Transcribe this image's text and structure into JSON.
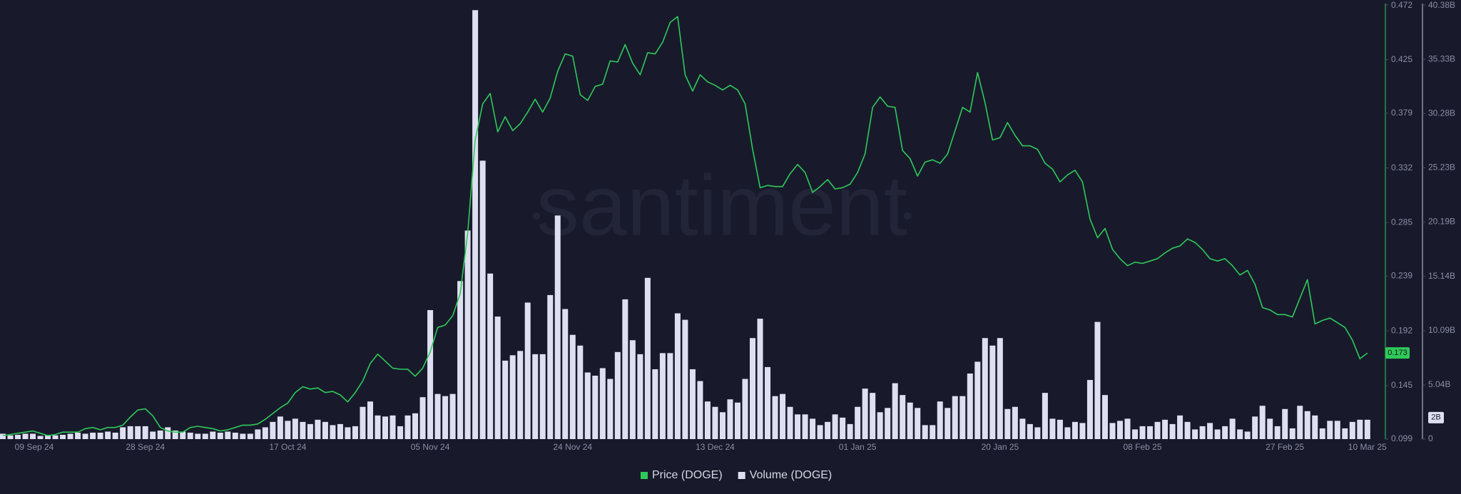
{
  "chart_data": {
    "type": "bar-line",
    "watermark": "santiment",
    "categories": [
      "09 Sep 24",
      null,
      null,
      null,
      null,
      null,
      null,
      null,
      null,
      null,
      null,
      null,
      null,
      null,
      null,
      null,
      null,
      null,
      null,
      "28 Sep 24",
      null,
      null,
      null,
      null,
      null,
      null,
      null,
      null,
      null,
      null,
      null,
      null,
      null,
      null,
      null,
      null,
      null,
      null,
      "17 Oct 24",
      null,
      null,
      null,
      null,
      null,
      null,
      null,
      null,
      null,
      null,
      null,
      null,
      null,
      null,
      null,
      null,
      null,
      null,
      "05 Nov 24",
      null,
      null,
      null,
      null,
      null,
      null,
      null,
      null,
      null,
      null,
      null,
      null,
      null,
      null,
      null,
      null,
      null,
      null,
      "24 Nov 24",
      null,
      null,
      null,
      null,
      null,
      null,
      null,
      null,
      null,
      null,
      null,
      null,
      null,
      null,
      null,
      null,
      null,
      null,
      "13 Dec 24",
      null,
      null,
      null,
      null,
      null,
      null,
      null,
      null,
      null,
      null,
      null,
      null,
      null,
      null,
      null,
      null,
      null,
      null,
      "01 Jan 25",
      null,
      null,
      null,
      null,
      null,
      null,
      null,
      null,
      null,
      null,
      null,
      null,
      null,
      null,
      null,
      null,
      null,
      null,
      "20 Jan 25",
      null,
      null,
      null,
      null,
      null,
      null,
      null,
      null,
      null,
      null,
      null,
      null,
      null,
      null,
      null,
      null,
      null,
      null,
      "08 Feb 25",
      null,
      null,
      null,
      null,
      null,
      null,
      null,
      null,
      null,
      null,
      null,
      null,
      null,
      null,
      null,
      null,
      null,
      null,
      "27 Feb 25",
      null,
      null,
      null,
      null,
      null,
      null,
      null,
      null,
      null,
      null,
      "10 Mar 25"
    ],
    "series": [
      {
        "name": "Price (DOGE)",
        "type": "line",
        "axis": "y",
        "color": "#2fc95a",
        "values": [
          0.102,
          0.103,
          0.104,
          0.105,
          0.106,
          0.104,
          0.102,
          0.103,
          0.105,
          0.105,
          0.105,
          0.108,
          0.109,
          0.107,
          0.109,
          0.109,
          0.111,
          0.118,
          0.124,
          0.125,
          0.119,
          0.109,
          0.106,
          0.105,
          0.105,
          0.109,
          0.11,
          0.109,
          0.108,
          0.106,
          0.107,
          0.109,
          0.111,
          0.111,
          0.112,
          0.116,
          0.121,
          0.126,
          0.13,
          0.139,
          0.144,
          0.142,
          0.143,
          0.139,
          0.14,
          0.137,
          0.131,
          0.139,
          0.149,
          0.164,
          0.172,
          0.166,
          0.16,
          0.159,
          0.159,
          0.153,
          0.16,
          0.174,
          0.195,
          0.197,
          0.205,
          0.224,
          0.276,
          0.356,
          0.387,
          0.396,
          0.363,
          0.376,
          0.364,
          0.37,
          0.38,
          0.391,
          0.38,
          0.392,
          0.415,
          0.43,
          0.428,
          0.395,
          0.39,
          0.402,
          0.404,
          0.424,
          0.423,
          0.438,
          0.422,
          0.412,
          0.431,
          0.43,
          0.44,
          0.457,
          0.462,
          0.412,
          0.398,
          0.412,
          0.406,
          0.403,
          0.399,
          0.403,
          0.399,
          0.387,
          0.348,
          0.315,
          0.317,
          0.316,
          0.316,
          0.327,
          0.335,
          0.328,
          0.311,
          0.316,
          0.322,
          0.314,
          0.315,
          0.318,
          0.328,
          0.344,
          0.384,
          0.393,
          0.385,
          0.384,
          0.347,
          0.34,
          0.325,
          0.337,
          0.339,
          0.336,
          0.344,
          0.364,
          0.384,
          0.38,
          0.414,
          0.388,
          0.356,
          0.358,
          0.371,
          0.36,
          0.351,
          0.351,
          0.348,
          0.336,
          0.331,
          0.32,
          0.326,
          0.33,
          0.32,
          0.288,
          0.272,
          0.28,
          0.262,
          0.254,
          0.248,
          0.251,
          0.25,
          0.252,
          0.254,
          0.259,
          0.263,
          0.265,
          0.271,
          0.268,
          0.262,
          0.254,
          0.252,
          0.254,
          0.248,
          0.24,
          0.244,
          0.232,
          0.212,
          0.21,
          0.206,
          0.206,
          0.204,
          0.22,
          0.236,
          0.198,
          0.201,
          0.203,
          0.199,
          0.195,
          0.184,
          0.168,
          0.173
        ]
      },
      {
        "name": "Volume (DOGE)",
        "type": "bar",
        "axis": "y2",
        "color": "#dedff0",
        "values": [
          0.5,
          0.35,
          0.4,
          0.5,
          0.5,
          0.3,
          0.4,
          0.35,
          0.4,
          0.5,
          0.6,
          0.5,
          0.6,
          0.6,
          0.7,
          0.6,
          1.1,
          1.2,
          1.2,
          1.2,
          0.7,
          0.8,
          1.1,
          0.8,
          0.7,
          0.6,
          0.5,
          0.5,
          0.7,
          0.6,
          0.7,
          0.6,
          0.5,
          0.5,
          0.9,
          1.1,
          1.6,
          2.1,
          1.7,
          1.9,
          1.6,
          1.4,
          1.8,
          1.6,
          1.3,
          1.4,
          1.1,
          1.2,
          3.0,
          3.5,
          2.2,
          2.1,
          2.2,
          1.2,
          2.2,
          2.4,
          3.9,
          12.0,
          4.2,
          4.0,
          4.2,
          14.7,
          19.4,
          39.9,
          25.9,
          15.4,
          11.4,
          7.3,
          7.8,
          8.2,
          12.7,
          7.9,
          7.9,
          13.4,
          20.8,
          12.1,
          9.7,
          8.7,
          6.2,
          5.9,
          6.6,
          5.6,
          8.1,
          13.0,
          9.2,
          7.9,
          15.0,
          6.5,
          8.0,
          8.0,
          11.7,
          11.1,
          6.5,
          5.4,
          3.5,
          3.0,
          2.5,
          3.7,
          3.4,
          5.6,
          9.4,
          11.2,
          6.7,
          4.0,
          4.2,
          3.0,
          2.3,
          2.3,
          1.9,
          1.3,
          1.6,
          2.3,
          2.0,
          1.4,
          3.0,
          4.7,
          4.3,
          2.5,
          2.9,
          5.2,
          4.1,
          3.4,
          2.9,
          1.3,
          1.3,
          3.5,
          2.9,
          4.0,
          4.0,
          6.1,
          7.2,
          9.4,
          8.7,
          9.4,
          2.8,
          3.0,
          1.9,
          1.4,
          1.1,
          4.3,
          1.9,
          1.8,
          1.1,
          1.6,
          1.5,
          5.5,
          10.9,
          4.1,
          1.5,
          1.7,
          1.9,
          0.9,
          1.2,
          1.2,
          1.6,
          1.8,
          1.4,
          2.2,
          1.6,
          0.9,
          1.2,
          1.5,
          0.9,
          1.2,
          1.9,
          0.9,
          0.7,
          2.1,
          3.1,
          1.9,
          1.2,
          2.8,
          1.0,
          3.1,
          2.6,
          2.2,
          1.0,
          1.7,
          1.7,
          1.0,
          1.6,
          1.8,
          1.8
        ]
      }
    ],
    "ylim": [
      0.099,
      0.472
    ],
    "yticks": [
      0.099,
      0.145,
      0.192,
      0.239,
      0.285,
      0.332,
      0.379,
      0.425,
      0.472
    ],
    "y2lim": [
      0,
      40.38
    ],
    "y2ticks": [
      0,
      {
        "value": 5.04,
        "label": "5.04B"
      },
      {
        "value": 10.09,
        "label": "10.09B"
      },
      {
        "value": 15.14,
        "label": "15.14B"
      },
      {
        "value": 20.19,
        "label": "20.19B"
      },
      {
        "value": 25.23,
        "label": "25.23B"
      },
      {
        "value": 30.28,
        "label": "30.28B"
      },
      {
        "value": 35.33,
        "label": "35.33B"
      },
      {
        "value": 40.38,
        "label": "40.38B"
      }
    ],
    "price_marker": 0.173,
    "volume_marker": {
      "value": 2,
      "label": "2B"
    },
    "legend": "bottom"
  }
}
